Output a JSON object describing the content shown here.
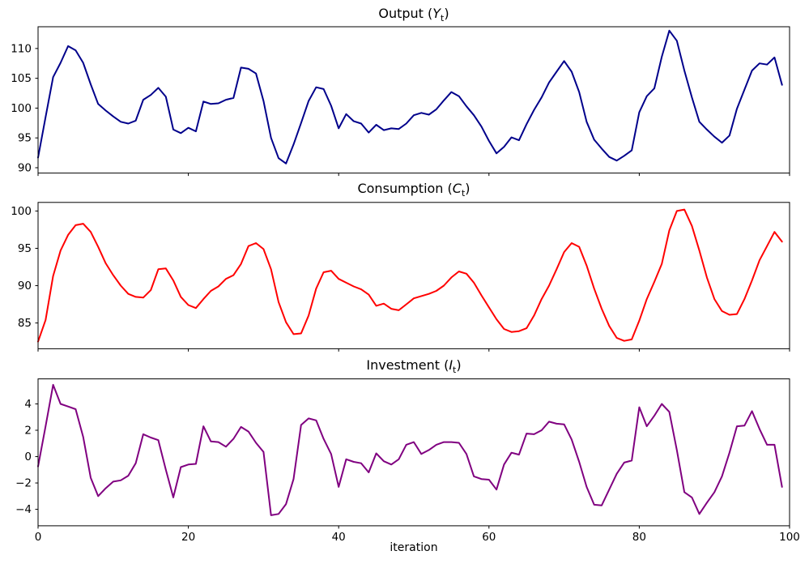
{
  "x_axis": {
    "label": "iteration",
    "ticks": [
      0,
      20,
      40,
      60,
      80,
      100
    ],
    "lim": [
      0,
      100
    ]
  },
  "chart_data": [
    {
      "type": "line",
      "name": "output",
      "title_parts": {
        "prefix": "Output (",
        "var": "Y",
        "sub": "t",
        "suffix": ")"
      },
      "color": "#00008b",
      "ylim": [
        89.1,
        113.65
      ],
      "yticks": [
        90,
        95,
        100,
        105,
        110
      ],
      "x_start": 0,
      "values": [
        91.7,
        98.5,
        105.2,
        107.6,
        110.4,
        109.7,
        107.6,
        104.0,
        100.7,
        99.6,
        98.6,
        97.7,
        97.4,
        97.9,
        101.4,
        102.2,
        103.4,
        101.9,
        96.4,
        95.8,
        96.7,
        96.1,
        101.1,
        100.7,
        100.8,
        101.4,
        101.7,
        106.8,
        106.6,
        105.8,
        101.2,
        95.0,
        91.6,
        90.7,
        93.9,
        97.5,
        101.2,
        103.5,
        103.2,
        100.4,
        96.6,
        99.0,
        97.8,
        97.4,
        95.9,
        97.2,
        96.3,
        96.6,
        96.5,
        97.4,
        98.8,
        99.2,
        98.9,
        99.8,
        101.3,
        102.7,
        102.0,
        100.3,
        98.8,
        96.9,
        94.5,
        92.4,
        93.5,
        95.1,
        94.6,
        97.3,
        99.7,
        101.8,
        104.3,
        106.1,
        107.9,
        106.1,
        102.7,
        97.7,
        94.7,
        93.2,
        91.8,
        91.2,
        92.0,
        92.9,
        99.3,
        102.0,
        103.3,
        108.6,
        113.0,
        111.3,
        106.3,
        101.8,
        97.7,
        96.4,
        95.2,
        94.2,
        95.4,
        99.9,
        103.1,
        106.3,
        107.5,
        107.3,
        108.5,
        103.9
      ]
    },
    {
      "type": "line",
      "name": "consumption",
      "title_parts": {
        "prefix": "Consumption (",
        "var": "C",
        "sub": "t",
        "suffix": ")"
      },
      "color": "#ff0000",
      "ylim": [
        81.55,
        101.15
      ],
      "yticks": [
        85,
        90,
        95,
        100
      ],
      "x_start": 0,
      "values": [
        82.5,
        85.4,
        91.3,
        94.7,
        96.8,
        98.1,
        98.3,
        97.2,
        95.2,
        93.0,
        91.4,
        90.0,
        88.9,
        88.5,
        88.4,
        89.4,
        92.2,
        92.3,
        90.7,
        88.5,
        87.4,
        87.0,
        88.2,
        89.3,
        89.9,
        90.9,
        91.4,
        92.9,
        95.3,
        95.7,
        94.9,
        92.2,
        87.8,
        85.1,
        83.5,
        83.6,
        86.0,
        89.6,
        91.8,
        92.0,
        90.9,
        90.4,
        89.9,
        89.5,
        88.8,
        87.3,
        87.6,
        86.9,
        86.7,
        87.5,
        88.3,
        88.6,
        88.9,
        89.3,
        90.0,
        91.1,
        91.9,
        91.6,
        90.4,
        88.7,
        87.1,
        85.5,
        84.2,
        83.8,
        83.9,
        84.3,
        86.0,
        88.2,
        90.0,
        92.2,
        94.5,
        95.7,
        95.2,
        92.7,
        89.6,
        86.9,
        84.6,
        83.0,
        82.6,
        82.8,
        85.3,
        88.2,
        90.5,
        92.9,
        97.4,
        100.0,
        100.2,
        98.0,
        94.7,
        91.1,
        88.2,
        86.6,
        86.1,
        86.2,
        88.2,
        90.7,
        93.4,
        95.3,
        97.2,
        95.9
      ]
    },
    {
      "type": "line",
      "name": "investment",
      "title_parts": {
        "prefix": "Investment (",
        "var": "I",
        "sub": "t",
        "suffix": ")"
      },
      "color": "#800080",
      "ylim": [
        -5.25,
        5.9
      ],
      "yticks": [
        -4,
        -2,
        0,
        2,
        4
      ],
      "x_start": 0,
      "values": [
        -0.75,
        2.3,
        5.45,
        4.0,
        3.8,
        3.6,
        1.5,
        -1.6,
        -3.0,
        -2.4,
        -1.9,
        -1.8,
        -1.45,
        -0.5,
        1.7,
        1.45,
        1.25,
        -1.0,
        -3.1,
        -0.8,
        -0.6,
        -0.55,
        2.3,
        1.15,
        1.1,
        0.75,
        1.35,
        2.25,
        1.9,
        1.05,
        0.35,
        -4.45,
        -4.35,
        -3.6,
        -1.7,
        2.4,
        2.9,
        2.75,
        1.35,
        0.2,
        -2.3,
        -0.2,
        -0.4,
        -0.5,
        -1.2,
        0.25,
        -0.35,
        -0.6,
        -0.2,
        0.9,
        1.1,
        0.2,
        0.5,
        0.9,
        1.1,
        1.1,
        1.05,
        0.2,
        -1.5,
        -1.7,
        -1.75,
        -2.5,
        -0.6,
        0.3,
        0.15,
        1.75,
        1.7,
        2.0,
        2.65,
        2.5,
        2.45,
        1.3,
        -0.4,
        -2.3,
        -3.65,
        -3.7,
        -2.5,
        -1.3,
        -0.45,
        -0.3,
        3.75,
        2.3,
        3.1,
        4.0,
        3.4,
        0.5,
        -2.7,
        -3.1,
        -4.35,
        -3.5,
        -2.7,
        -1.5,
        0.3,
        2.3,
        2.35,
        3.45,
        2.1,
        0.9,
        0.9,
        -2.3
      ]
    }
  ]
}
